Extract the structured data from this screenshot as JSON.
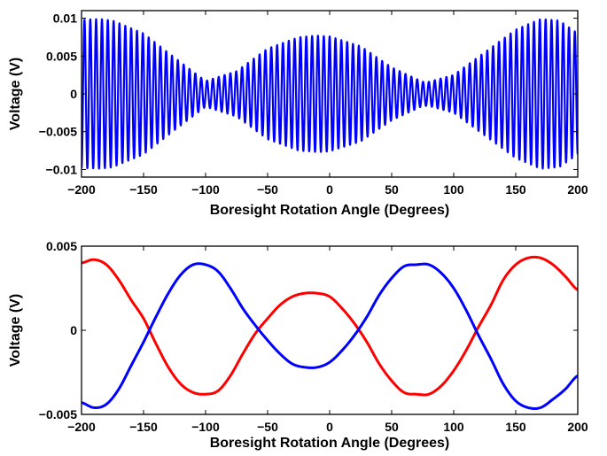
{
  "chart_data": [
    {
      "type": "line",
      "xlabel": "Boresight Rotation Angle (Degrees)",
      "ylabel": "Voltage (V)",
      "xlim": [
        -200,
        200
      ],
      "ylim": [
        -0.011,
        0.011
      ],
      "xticks": [
        -200,
        -150,
        -100,
        -50,
        0,
        50,
        100,
        150,
        200
      ],
      "xtick_labels": [
        "−200",
        "−150",
        "−100",
        "−50",
        "0",
        "50",
        "100",
        "150",
        "200"
      ],
      "yticks": [
        -0.01,
        -0.005,
        0,
        0.005,
        0.01
      ],
      "ytick_labels": [
        "−0.01",
        "−0.005",
        "0",
        "0.005",
        "0.01"
      ],
      "grid": false,
      "series": [
        {
          "color": "#0000ff",
          "style": "rapid oscillation with slowly varying envelope",
          "cycles_per_degree": 0.2125,
          "envelope": {
            "x": [
              -200,
              -185,
              -175,
              -150,
              -125,
              -100,
              -75,
              -50,
              -25,
              -10,
              0,
              25,
              50,
              75,
              80,
              100,
              125,
              150,
              170,
              185,
              200
            ],
            "amplitude": [
              0.0098,
              0.0099,
              0.0097,
              0.008,
              0.0048,
              0.0017,
              0.003,
              0.006,
              0.0075,
              0.0077,
              0.0076,
              0.0063,
              0.0035,
              0.0016,
              0.0016,
              0.0025,
              0.0055,
              0.0085,
              0.0099,
              0.0097,
              0.008
            ]
          }
        }
      ]
    },
    {
      "type": "line",
      "xlabel": "Boresight Rotation Angle (Degrees)",
      "ylabel": "Voltage (V)",
      "xlim": [
        -200,
        200
      ],
      "ylim": [
        -0.005,
        0.005
      ],
      "xticks": [
        -200,
        -150,
        -100,
        -50,
        0,
        50,
        100,
        150,
        200
      ],
      "xtick_labels": [
        "−200",
        "−150",
        "−100",
        "−50",
        "0",
        "50",
        "100",
        "150",
        "200"
      ],
      "yticks": [
        -0.005,
        0,
        0.005
      ],
      "ytick_labels": [
        "−0.005",
        "0",
        "0.005"
      ],
      "grid": false,
      "series": [
        {
          "color": "#ff0000",
          "x": [
            -200,
            -190,
            -180,
            -170,
            -160,
            -150,
            -140,
            -130,
            -120,
            -110,
            -100,
            -90,
            -80,
            -70,
            -60,
            -50,
            -40,
            -30,
            -20,
            -10,
            0,
            10,
            20,
            30,
            40,
            50,
            60,
            70,
            80,
            90,
            100,
            110,
            120,
            130,
            140,
            150,
            160,
            170,
            180,
            190,
            200
          ],
          "y": [
            0.004,
            0.0042,
            0.0039,
            0.003,
            0.0018,
            0.0007,
            -0.0008,
            -0.0022,
            -0.0032,
            -0.0037,
            -0.0038,
            -0.0036,
            -0.0027,
            -0.0014,
            -0.0002,
            0.0007,
            0.0015,
            0.002,
            0.0022,
            0.0022,
            0.002,
            0.0013,
            0.0004,
            -0.0007,
            -0.002,
            -0.003,
            -0.0037,
            -0.0038,
            -0.0038,
            -0.0033,
            -0.0024,
            -0.0012,
            0.0002,
            0.0015,
            0.003,
            0.0039,
            0.0043,
            0.0043,
            0.0039,
            0.0032,
            0.0024
          ]
        },
        {
          "color": "#0000ff",
          "x": [
            -200,
            -190,
            -180,
            -170,
            -160,
            -150,
            -140,
            -130,
            -120,
            -110,
            -100,
            -90,
            -80,
            -70,
            -60,
            -50,
            -40,
            -30,
            -20,
            -10,
            0,
            10,
            20,
            30,
            40,
            50,
            60,
            70,
            80,
            90,
            100,
            110,
            120,
            130,
            140,
            150,
            160,
            170,
            180,
            190,
            200
          ],
          "y": [
            -0.0043,
            -0.0046,
            -0.0044,
            -0.0035,
            -0.0021,
            -0.0007,
            0.0008,
            0.0022,
            0.0033,
            0.0039,
            0.0039,
            0.0035,
            0.0025,
            0.0013,
            0.0003,
            -0.0006,
            -0.0014,
            -0.002,
            -0.0022,
            -0.0022,
            -0.0019,
            -0.0012,
            -0.0003,
            0.0008,
            0.0021,
            0.0031,
            0.0038,
            0.0039,
            0.0039,
            0.0034,
            0.0025,
            0.0012,
            -0.0003,
            -0.0017,
            -0.0032,
            -0.0042,
            -0.0046,
            -0.0046,
            -0.0041,
            -0.0035,
            -0.0027
          ]
        }
      ]
    }
  ]
}
